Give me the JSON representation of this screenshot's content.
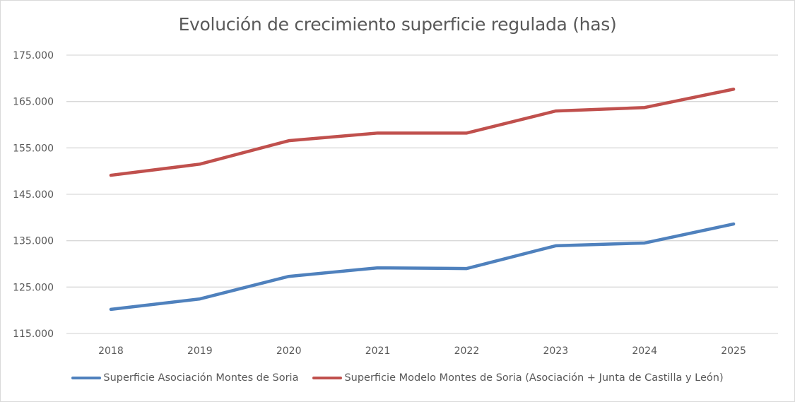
{
  "chart_data": {
    "type": "line",
    "title": "Evolución de crecimiento superficie regulada (has)",
    "xlabel": "",
    "ylabel": "",
    "categories": [
      "2018",
      "2019",
      "2020",
      "2021",
      "2022",
      "2023",
      "2024",
      "2025"
    ],
    "ylim": [
      115000,
      175000
    ],
    "yticks": [
      115000,
      125000,
      135000,
      145000,
      155000,
      165000,
      175000
    ],
    "ytick_labels": [
      "115.000",
      "125.000",
      "135.000",
      "145.000",
      "155.000",
      "165.000",
      "175.000"
    ],
    "grid": true,
    "legend_position": "bottom",
    "series": [
      {
        "name": "Superficie Asociación Montes de Soria",
        "color": "#4f81bd",
        "values": [
          120200,
          122450,
          127300,
          129150,
          129000,
          133900,
          134500,
          138600
        ]
      },
      {
        "name": "Superficie Modelo Montes de Soria (Asociación + Junta de Castilla y León)",
        "color": "#c0504d",
        "values": [
          149100,
          151500,
          156550,
          158200,
          158200,
          162950,
          163700,
          167650
        ]
      }
    ]
  }
}
